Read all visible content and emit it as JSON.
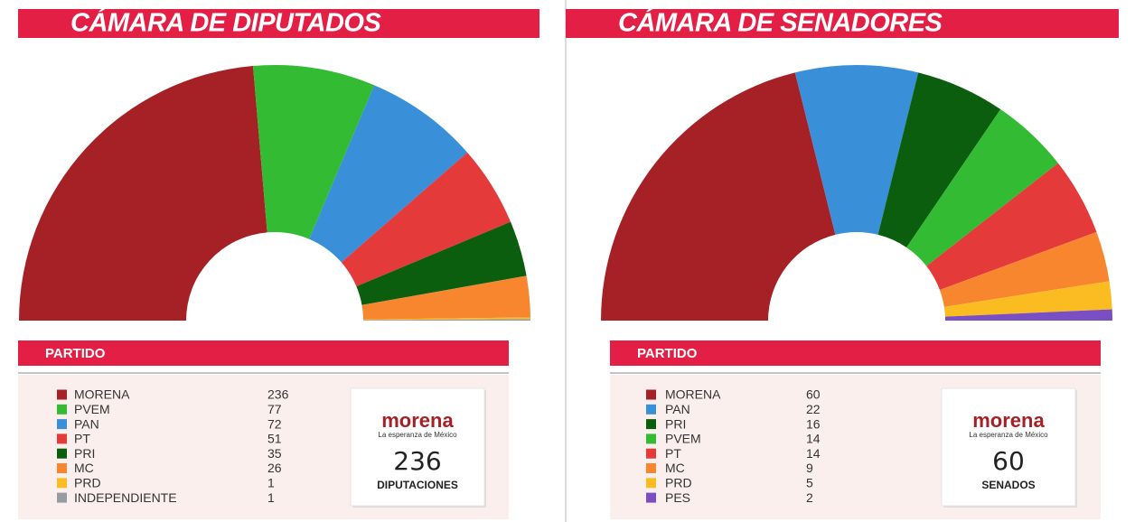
{
  "chart_data": [
    {
      "type": "semidonut",
      "title": "CÁMARA DE DIPUTADOS",
      "table_header": "PARTIDO",
      "categories": [
        "MORENA",
        "PVEM",
        "PAN",
        "PT",
        "PRI",
        "MC",
        "PRD",
        "INDEPENDIENTE"
      ],
      "values": [
        236,
        77,
        72,
        51,
        35,
        26,
        1,
        1
      ],
      "colors": [
        "#a52126",
        "#33bb33",
        "#3a8fd9",
        "#e43a3a",
        "#0a5e0e",
        "#f7862f",
        "#fbbc22",
        "#999ba3"
      ],
      "logo": "morena",
      "tagline": "La esperanza de México",
      "seats_label": "DIPUTACIONES"
    },
    {
      "type": "semidonut",
      "title": "CÁMARA DE SENADORES",
      "table_header": "PARTIDO",
      "categories": [
        "MORENA",
        "PAN",
        "PRI",
        "PVEM",
        "PT",
        "MC",
        "PRD",
        "PES"
      ],
      "values": [
        60,
        22,
        16,
        14,
        14,
        9,
        5,
        2
      ],
      "colors": [
        "#a52126",
        "#3a8fd9",
        "#0a5e0e",
        "#33bb33",
        "#e43a3a",
        "#f7862f",
        "#fbbc22",
        "#7b4fc4"
      ],
      "logo": "morena",
      "tagline": "La esperanza de México",
      "seats_label": "SENADOS"
    }
  ]
}
